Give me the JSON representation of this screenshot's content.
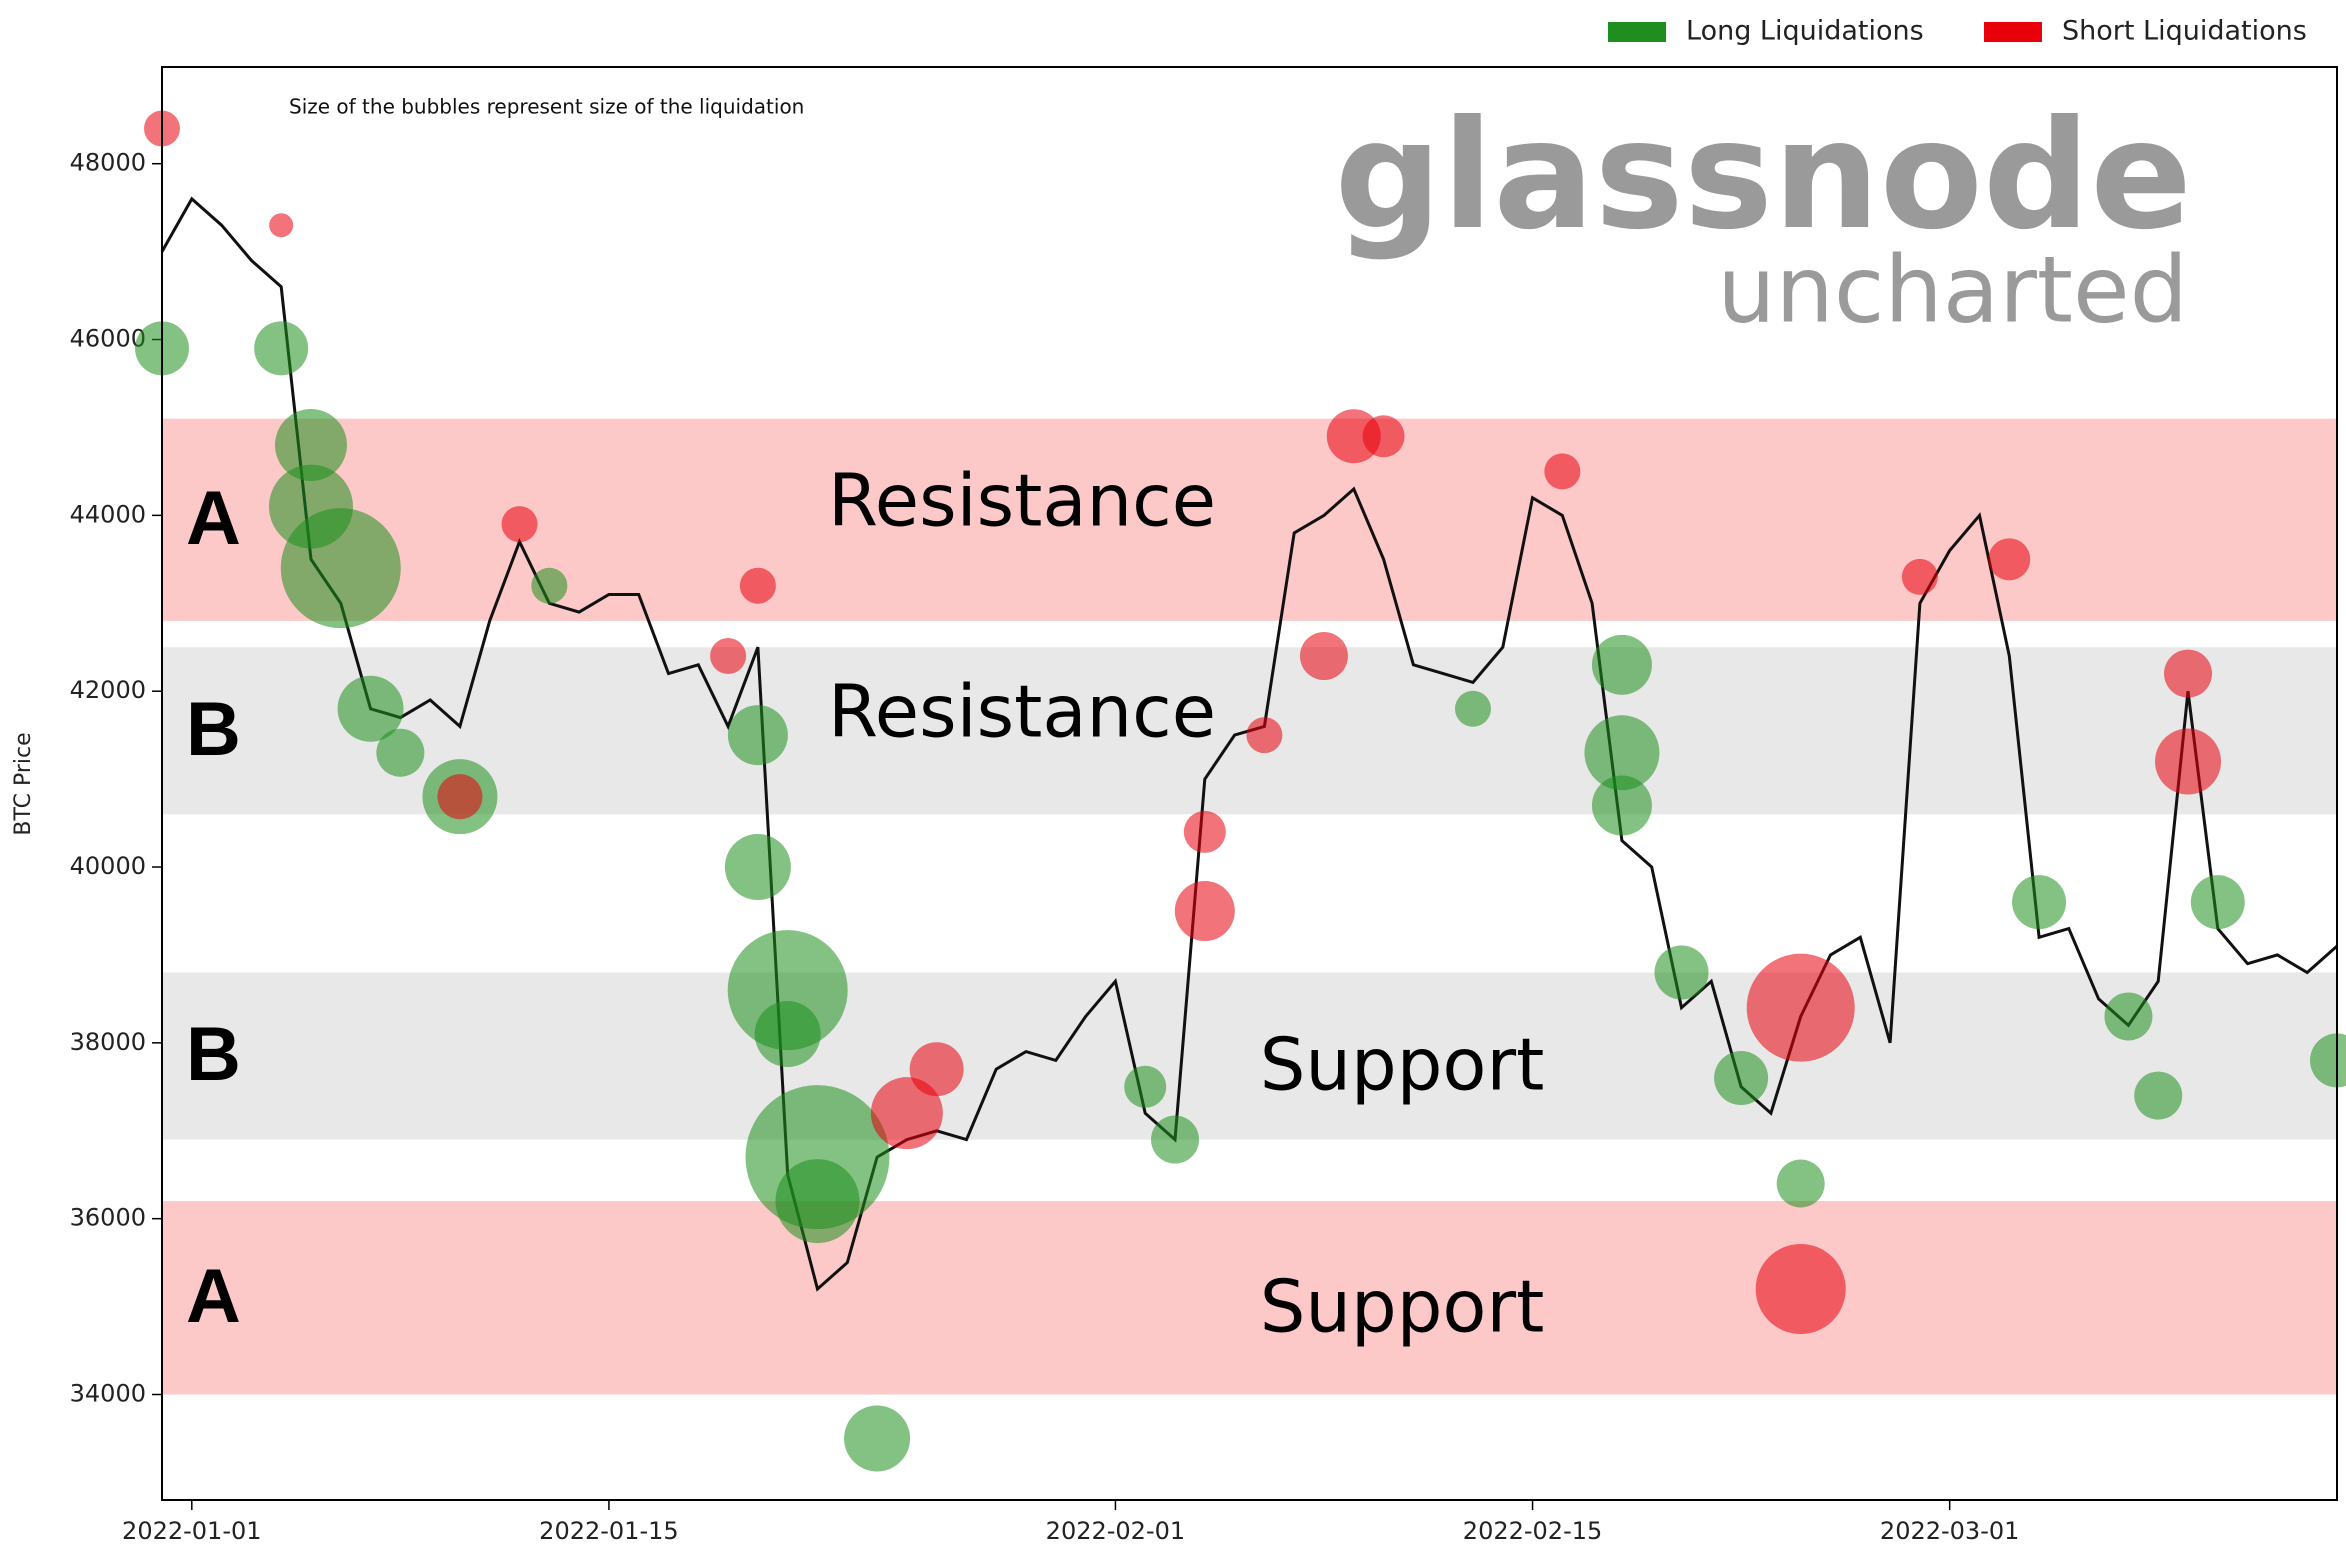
{
  "chart_data": {
    "type": "bubble-line",
    "y_label": "BTC Price",
    "annotation": "Size of the bubbles represent size of the liquidation",
    "watermark": {
      "brand": "glassnode",
      "tagline": "uncharted"
    },
    "xlim": [
      "2021-12-31",
      "2022-03-14"
    ],
    "xticks": [
      "2022-01-01",
      "2022-01-15",
      "2022-02-01",
      "2022-02-15",
      "2022-03-01"
    ],
    "ylim": [
      32800,
      49100
    ],
    "yticks": [
      34000,
      36000,
      38000,
      40000,
      42000,
      44000,
      46000,
      48000
    ],
    "legend": "top-right",
    "bands": [
      {
        "label": "A",
        "text": "Resistance",
        "ymin": 42800,
        "ymax": 45100,
        "color": "#fcc8c8"
      },
      {
        "label": "B",
        "text": "Resistance",
        "ymin": 40600,
        "ymax": 42500,
        "color": "#e8e8e8"
      },
      {
        "label": "B",
        "text": "Support",
        "ymin": 36900,
        "ymax": 38800,
        "color": "#e8e8e8"
      },
      {
        "label": "A",
        "text": "Support",
        "ymin": 34000,
        "ymax": 36200,
        "color": "#fcc8c8"
      }
    ],
    "price": {
      "color": "#111111",
      "x": [
        "2021-12-31",
        "2022-01-01",
        "2022-01-02",
        "2022-01-03",
        "2022-01-04",
        "2022-01-05",
        "2022-01-06",
        "2022-01-07",
        "2022-01-08",
        "2022-01-09",
        "2022-01-10",
        "2022-01-11",
        "2022-01-12",
        "2022-01-13",
        "2022-01-14",
        "2022-01-15",
        "2022-01-16",
        "2022-01-17",
        "2022-01-18",
        "2022-01-19",
        "2022-01-20",
        "2022-01-21",
        "2022-01-22",
        "2022-01-23",
        "2022-01-24",
        "2022-01-25",
        "2022-01-26",
        "2022-01-27",
        "2022-01-28",
        "2022-01-29",
        "2022-01-30",
        "2022-01-31",
        "2022-02-01",
        "2022-02-02",
        "2022-02-03",
        "2022-02-04",
        "2022-02-05",
        "2022-02-06",
        "2022-02-07",
        "2022-02-08",
        "2022-02-09",
        "2022-02-10",
        "2022-02-11",
        "2022-02-12",
        "2022-02-13",
        "2022-02-14",
        "2022-02-15",
        "2022-02-16",
        "2022-02-17",
        "2022-02-18",
        "2022-02-19",
        "2022-02-20",
        "2022-02-21",
        "2022-02-22",
        "2022-02-23",
        "2022-02-24",
        "2022-02-25",
        "2022-02-26",
        "2022-02-27",
        "2022-02-28",
        "2022-03-01",
        "2022-03-02",
        "2022-03-03",
        "2022-03-04",
        "2022-03-05",
        "2022-03-06",
        "2022-03-07",
        "2022-03-08",
        "2022-03-09",
        "2022-03-10",
        "2022-03-11",
        "2022-03-12",
        "2022-03-13",
        "2022-03-14"
      ],
      "values": [
        47000,
        47600,
        47300,
        46900,
        46600,
        43500,
        43000,
        41800,
        41700,
        41900,
        41600,
        42800,
        43700,
        43000,
        42900,
        43100,
        43100,
        42200,
        42300,
        41600,
        42500,
        36500,
        35200,
        35500,
        36700,
        36900,
        37000,
        36900,
        37700,
        37900,
        37800,
        38300,
        38700,
        37200,
        36900,
        41000,
        41500,
        41600,
        43800,
        44000,
        44300,
        43500,
        42300,
        42200,
        42100,
        42500,
        44200,
        44000,
        43000,
        40300,
        40000,
        38400,
        38700,
        37500,
        37200,
        38300,
        39000,
        39200,
        38000,
        43000,
        43600,
        44000,
        42400,
        39200,
        39300,
        38500,
        38200,
        38700,
        42000,
        39300,
        38900,
        39000,
        38800,
        39100
      ]
    },
    "series": [
      {
        "name": "Long Liquidations",
        "color": "#1e8f1e",
        "x": [
          "2021-12-31",
          "2022-01-04",
          "2022-01-05",
          "2022-01-05",
          "2022-01-06",
          "2022-01-07",
          "2022-01-08",
          "2022-01-10",
          "2022-01-13",
          "2022-01-20",
          "2022-01-20",
          "2022-01-21",
          "2022-01-21",
          "2022-01-22",
          "2022-01-22",
          "2022-01-24",
          "2022-02-02",
          "2022-02-03",
          "2022-02-13",
          "2022-02-18",
          "2022-02-18",
          "2022-02-18",
          "2022-02-20",
          "2022-02-22",
          "2022-02-24",
          "2022-03-04",
          "2022-03-07",
          "2022-03-08",
          "2022-03-10",
          "2022-03-14"
        ],
        "values": [
          45900,
          45900,
          44800,
          44100,
          43400,
          41800,
          41300,
          40800,
          43200,
          41500,
          40000,
          38600,
          38100,
          36700,
          36200,
          33500,
          37500,
          36900,
          41800,
          42300,
          41300,
          40700,
          38800,
          37600,
          36400,
          39600,
          38300,
          37400,
          39600,
          37800
        ],
        "sizes": [
          18,
          18,
          24,
          28,
          40,
          22,
          16,
          25,
          12,
          20,
          22,
          40,
          22,
          48,
          28,
          22,
          14,
          16,
          12,
          20,
          25,
          20,
          18,
          18,
          16,
          18,
          16,
          16,
          18,
          18
        ]
      },
      {
        "name": "Short Liquidations",
        "color": "#e8000b",
        "x": [
          "2021-12-31",
          "2022-01-04",
          "2022-01-10",
          "2022-01-12",
          "2022-01-19",
          "2022-01-20",
          "2022-01-25",
          "2022-01-26",
          "2022-02-04",
          "2022-02-04",
          "2022-02-06",
          "2022-02-08",
          "2022-02-09",
          "2022-02-10",
          "2022-02-16",
          "2022-02-24",
          "2022-02-24",
          "2022-02-28",
          "2022-03-03",
          "2022-03-09",
          "2022-03-09"
        ],
        "values": [
          48400,
          47300,
          40800,
          43900,
          42400,
          43200,
          37200,
          37700,
          39500,
          40400,
          41500,
          42400,
          44900,
          44900,
          44500,
          38400,
          35200,
          43300,
          43500,
          41200,
          42200
        ],
        "sizes": [
          12,
          8,
          15,
          12,
          12,
          12,
          24,
          18,
          20,
          14,
          12,
          16,
          18,
          14,
          12,
          36,
          30,
          12,
          14,
          22,
          16
        ]
      }
    ]
  }
}
